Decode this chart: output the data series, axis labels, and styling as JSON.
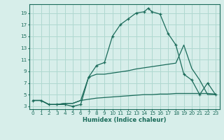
{
  "xlabel": "Humidex (Indice chaleur)",
  "bg_color": "#d7eeea",
  "grid_color": "#afd8d0",
  "line_color": "#1a6b5a",
  "x_ticks": [
    0,
    1,
    2,
    3,
    4,
    5,
    6,
    7,
    8,
    9,
    10,
    11,
    12,
    13,
    14,
    15,
    16,
    17,
    18,
    19,
    20,
    21,
    22,
    23
  ],
  "y_ticks": [
    3,
    5,
    7,
    9,
    11,
    13,
    15,
    17,
    19
  ],
  "ylim": [
    2.5,
    20.5
  ],
  "xlim": [
    -0.5,
    23.5
  ],
  "line1_x": [
    0,
    1,
    2,
    3,
    4,
    5,
    6,
    7,
    8,
    9,
    10,
    11,
    12,
    13,
    14,
    14.5,
    15,
    16,
    17,
    18,
    19,
    20,
    21,
    22,
    23
  ],
  "line1_y": [
    4.0,
    4.0,
    3.3,
    3.3,
    3.3,
    3.0,
    3.3,
    8.0,
    10.0,
    10.5,
    15.0,
    17.0,
    18.0,
    19.0,
    19.2,
    19.8,
    19.2,
    18.8,
    15.5,
    13.5,
    8.5,
    7.5,
    5.0,
    7.0,
    5.0
  ],
  "line2_x": [
    0,
    1,
    2,
    3,
    4,
    5,
    6,
    7,
    8,
    9,
    10,
    11,
    12,
    13,
    14,
    15,
    16,
    17,
    18,
    19,
    20,
    21,
    22,
    23
  ],
  "line2_y": [
    4.0,
    4.0,
    3.3,
    3.3,
    3.5,
    3.5,
    4.0,
    8.0,
    8.5,
    8.5,
    8.7,
    8.9,
    9.1,
    9.4,
    9.6,
    9.8,
    10.0,
    10.2,
    10.4,
    13.5,
    9.5,
    7.5,
    5.0,
    5.0
  ],
  "line3_x": [
    0,
    1,
    2,
    3,
    4,
    5,
    6,
    7,
    8,
    9,
    10,
    11,
    12,
    13,
    14,
    15,
    16,
    17,
    18,
    19,
    20,
    21,
    22,
    23
  ],
  "line3_y": [
    4.0,
    4.0,
    3.3,
    3.3,
    3.5,
    3.5,
    4.0,
    4.2,
    4.4,
    4.5,
    4.6,
    4.7,
    4.8,
    4.9,
    5.0,
    5.0,
    5.1,
    5.1,
    5.2,
    5.2,
    5.2,
    5.2,
    5.2,
    5.1
  ]
}
